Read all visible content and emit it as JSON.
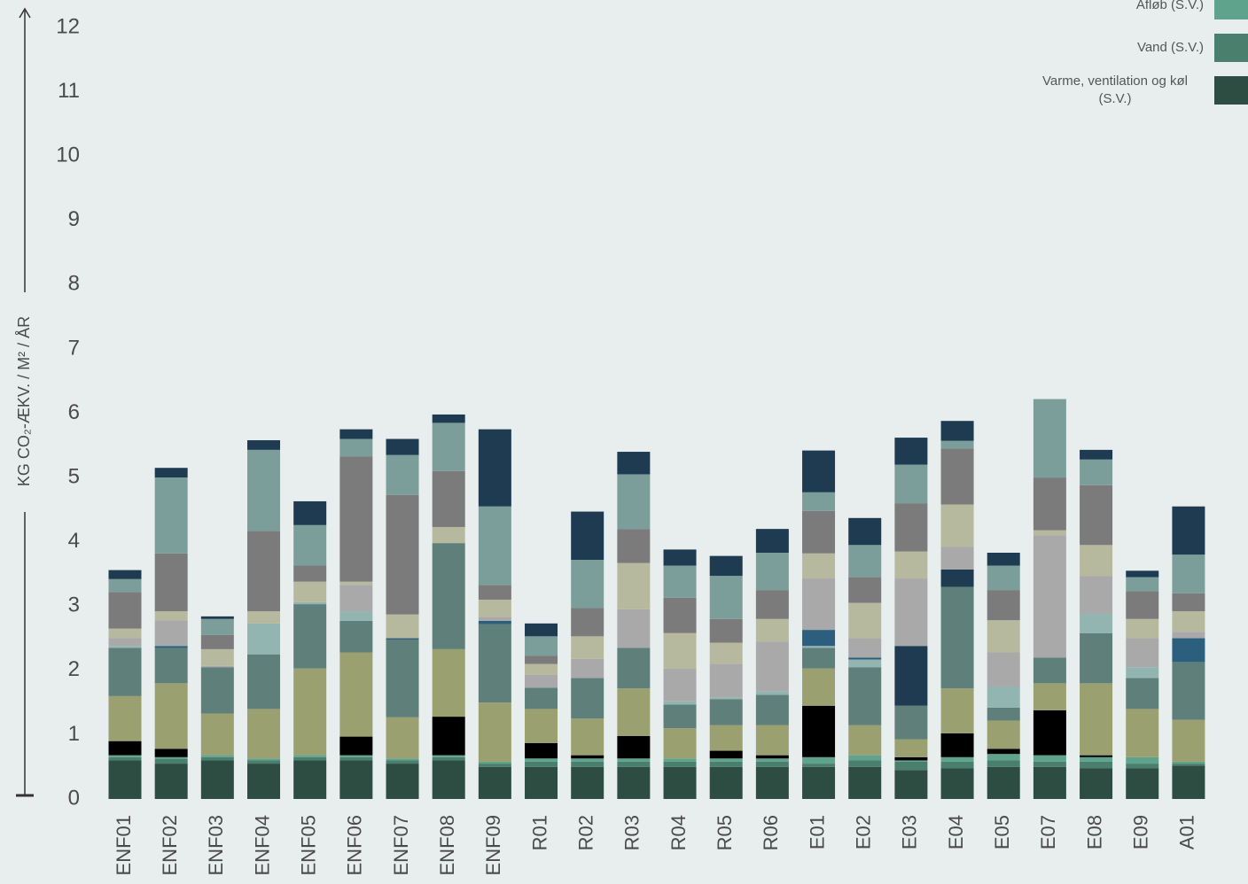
{
  "chart_data": {
    "type": "stacked_bar",
    "y_label": "KG CO₂-ÆKV. / M² / ÅR",
    "legend": "top-right",
    "categories": [
      "ENF01",
      "ENF02",
      "ENF03",
      "ENF04",
      "ENF05",
      "ENF06",
      "ENF07",
      "ENF08",
      "ENF09",
      "R01",
      "R02",
      "R03",
      "R04",
      "R05",
      "R06",
      "E01",
      "E02",
      "E03",
      "E04",
      "E05",
      "E07",
      "E08",
      "E09",
      "A01"
    ],
    "ylim": [
      0,
      12
    ],
    "yticks": [
      0,
      1,
      2,
      3,
      4,
      5,
      6,
      7,
      8,
      9,
      10,
      11,
      12
    ],
    "grid": false,
    "series": [
      {
        "name": "Varme, ventilation og køl (S.V.)",
        "color": "#2d4d42",
        "values": [
          0.6,
          0.55,
          0.6,
          0.55,
          0.6,
          0.6,
          0.55,
          0.6,
          0.5,
          0.5,
          0.5,
          0.5,
          0.5,
          0.5,
          0.5,
          0.5,
          0.5,
          0.45,
          0.48,
          0.5,
          0.5,
          0.48,
          0.48,
          0.52
        ]
      },
      {
        "name": "Vand (S.V.)",
        "color": "#4a7f6d",
        "values": [
          0.05,
          0.07,
          0.05,
          0.05,
          0.05,
          0.05,
          0.05,
          0.05,
          0.05,
          0.08,
          0.08,
          0.08,
          0.08,
          0.08,
          0.08,
          0.05,
          0.1,
          0.13,
          0.1,
          0.1,
          0.08,
          0.1,
          0.07,
          0.03
        ]
      },
      {
        "name": "Afløb (S.V.)",
        "color": "#5fa38c",
        "values": [
          0.03,
          0.03,
          0.03,
          0.03,
          0.03,
          0.03,
          0.03,
          0.03,
          0.03,
          0.05,
          0.05,
          0.05,
          0.05,
          0.05,
          0.05,
          0.1,
          0.08,
          0.02,
          0.07,
          0.1,
          0.1,
          0.07,
          0.1,
          0.03
        ]
      },
      {
        "color": "#000000",
        "values": [
          0.22,
          0.13,
          0,
          0,
          0,
          0.29,
          0,
          0.6,
          0,
          0.24,
          0.05,
          0.35,
          0,
          0.12,
          0.05,
          0.8,
          0,
          0.05,
          0.37,
          0.08,
          0.7,
          0.03,
          0,
          0
        ]
      },
      {
        "color": "#9aa070",
        "values": [
          0.7,
          1.02,
          0.65,
          0.77,
          1.35,
          1.31,
          0.64,
          1.05,
          0.92,
          0.53,
          0.57,
          0.74,
          0.47,
          0.4,
          0.47,
          0.58,
          0.47,
          0.28,
          0.7,
          0.44,
          0.42,
          1.12,
          0.75,
          0.65
        ]
      },
      {
        "color": "#5f7f7b",
        "values": [
          0.75,
          0.55,
          0.72,
          0.85,
          1.0,
          0.49,
          1.21,
          1.65,
          1.22,
          0.33,
          0.63,
          0.63,
          0.37,
          0.4,
          0.47,
          0.32,
          0.9,
          0.52,
          1.58,
          0.2,
          0.4,
          0.78,
          0.48,
          0.9
        ]
      },
      {
        "color": "#93b5b2",
        "values": [
          0.03,
          0,
          0,
          0.48,
          0.03,
          0.15,
          0,
          0,
          0,
          0,
          0,
          0,
          0.05,
          0.03,
          0.05,
          0.03,
          0.12,
          0,
          0,
          0.33,
          0,
          0.3,
          0.17,
          0
        ]
      },
      {
        "color": "#2c5f7e",
        "values": [
          0,
          0.03,
          0,
          0,
          0,
          0,
          0.02,
          0,
          0.05,
          0,
          0,
          0,
          0,
          0,
          0,
          0.25,
          0.03,
          0,
          0,
          0,
          0,
          0,
          0,
          0.37
        ]
      },
      {
        "color": "#1f3b52",
        "values": [
          0,
          0,
          0,
          0,
          0,
          0,
          0,
          0,
          0,
          0,
          0,
          0,
          0,
          0,
          0,
          0,
          0,
          0.93,
          0.27,
          0,
          0,
          0,
          0,
          0
        ]
      },
      {
        "color": "#a9a9a9",
        "values": [
          0.12,
          0.4,
          0.02,
          0,
          0,
          0.41,
          0,
          0,
          0.06,
          0.2,
          0.3,
          0.6,
          0.51,
          0.52,
          0.78,
          0.8,
          0.3,
          1.05,
          0.35,
          0.53,
          1.9,
          0.59,
          0.45,
          0.1
        ]
      },
      {
        "color": "#b6b99e",
        "values": [
          0.15,
          0.14,
          0.26,
          0.19,
          0.32,
          0.05,
          0.37,
          0.25,
          0.27,
          0.17,
          0.35,
          0.72,
          0.55,
          0.33,
          0.35,
          0.39,
          0.55,
          0.42,
          0.66,
          0.5,
          0.08,
          0.48,
          0.3,
          0.32
        ]
      },
      {
        "color": "#7b7b7b",
        "values": [
          0.57,
          0.9,
          0.22,
          1.25,
          0.25,
          1.95,
          1.86,
          0.87,
          0.23,
          0.13,
          0.44,
          0.53,
          0.55,
          0.37,
          0.45,
          0.66,
          0.4,
          0.75,
          0.87,
          0.47,
          0.82,
          0.93,
          0.43,
          0.28
        ]
      },
      {
        "color": "#7c9e9a",
        "values": [
          0.2,
          1.18,
          0.25,
          1.26,
          0.63,
          0.27,
          0.62,
          0.75,
          1.22,
          0.3,
          0.75,
          0.85,
          0.5,
          0.67,
          0.58,
          0.29,
          0.5,
          0.6,
          0.12,
          0.38,
          1.22,
          0.4,
          0.22,
          0.6
        ]
      },
      {
        "color": "#1f3b52",
        "values": [
          0.14,
          0.15,
          0.04,
          0.15,
          0.37,
          0.15,
          0.25,
          0.13,
          1.2,
          0.2,
          0.75,
          0.35,
          0.25,
          0.31,
          0.37,
          0.65,
          0.42,
          0.42,
          0.31,
          0.2,
          0,
          0.15,
          0.1,
          0.75
        ]
      }
    ]
  }
}
